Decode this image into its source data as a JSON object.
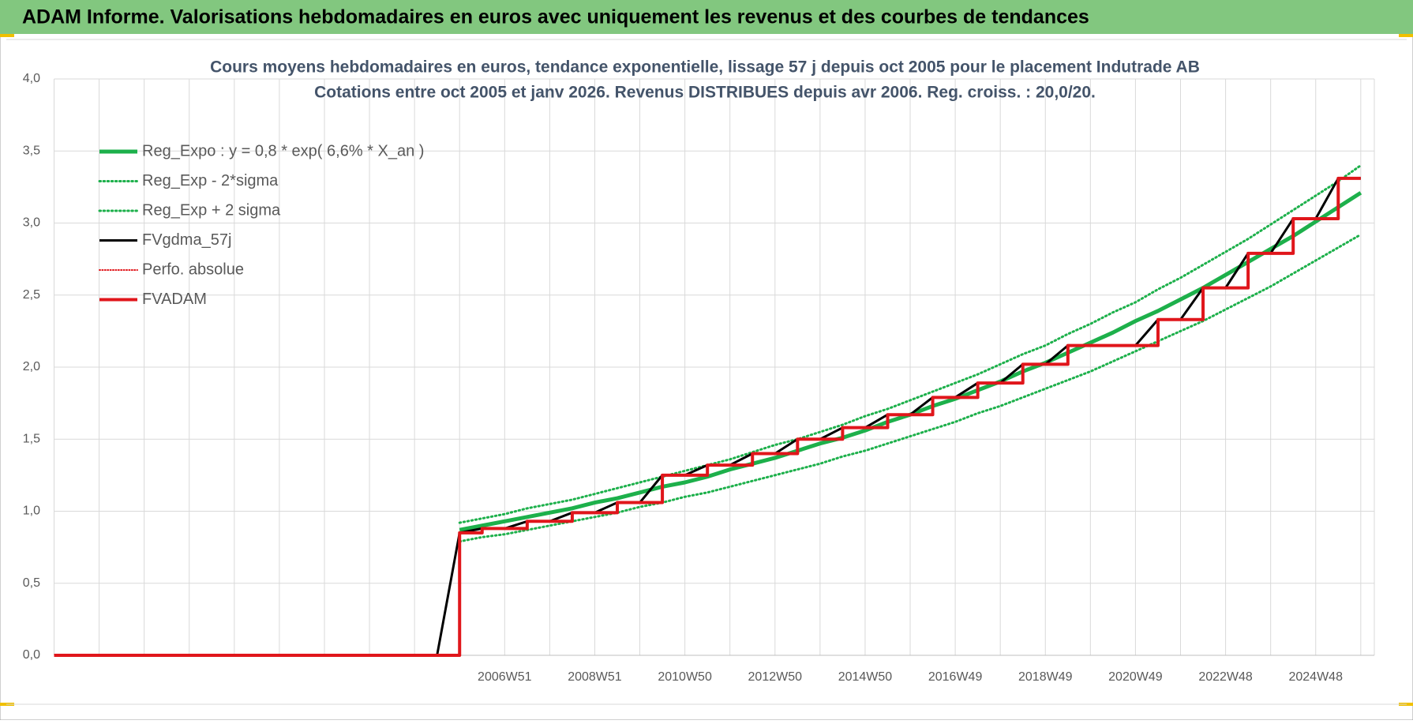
{
  "header": {
    "title": "ADAM Informe. Valorisations hebdomadaires en euros avec uniquement les revenus et des courbes de tendances"
  },
  "chart_data": {
    "type": "line",
    "title": [
      "Cours moyens hebdomadaires en euros, tendance exponentielle, lissage 57 j depuis oct 2005 pour le placement Indutrade AB",
      "Cotations entre oct 2005 et janv 2026. Revenus DISTRIBUES depuis avr 2006. Reg. croiss. : 20,0/20."
    ],
    "categories": [
      null,
      null,
      null,
      null,
      null,
      null,
      null,
      null,
      null,
      null,
      null,
      null,
      null,
      null,
      null,
      null,
      null,
      null,
      null,
      null,
      "2006W51",
      null,
      null,
      null,
      "2008W51",
      null,
      null,
      null,
      "2010W50",
      null,
      null,
      null,
      "2012W50",
      null,
      null,
      null,
      "2014W50",
      null,
      null,
      null,
      "2016W49",
      null,
      null,
      null,
      "2018W49",
      null,
      null,
      null,
      "2020W49",
      null,
      null,
      null,
      "2022W48",
      null,
      null,
      null,
      "2024W48",
      null,
      null
    ],
    "ylim": [
      0,
      4
    ],
    "yticks": [
      {
        "value": 0,
        "label": "0,0"
      },
      {
        "value": 0.5,
        "label": "0,5"
      },
      {
        "value": 1,
        "label": "1,0"
      },
      {
        "value": 1.5,
        "label": "1,5"
      },
      {
        "value": 2,
        "label": "2,0"
      },
      {
        "value": 2.5,
        "label": "2,5"
      },
      {
        "value": 3,
        "label": "3,0"
      },
      {
        "value": 3.5,
        "label": "3,5"
      },
      {
        "value": 4,
        "label": "4,0"
      }
    ],
    "grid": true,
    "legend": "upper-left",
    "series": [
      {
        "name": "Reg_Expo : y = 0,8 * exp( 6,6% *  X_an )",
        "color": "#1db04b",
        "width": 5,
        "dash": "solid",
        "values": [
          null,
          null,
          null,
          null,
          null,
          null,
          null,
          null,
          null,
          null,
          null,
          null,
          null,
          null,
          null,
          null,
          null,
          null,
          0.87,
          0.9,
          0.93,
          0.96,
          0.99,
          1.02,
          1.06,
          1.09,
          1.13,
          1.17,
          1.2,
          1.24,
          1.29,
          1.33,
          1.37,
          1.42,
          1.47,
          1.51,
          1.56,
          1.62,
          1.67,
          1.73,
          1.78,
          1.84,
          1.9,
          1.97,
          2.03,
          2.1,
          2.17,
          2.24,
          2.32,
          2.39,
          2.47,
          2.55,
          2.64,
          2.73,
          2.82,
          2.91,
          3.01,
          3.11,
          3.21
        ]
      },
      {
        "name": "Reg_Exp - 2*sigma",
        "color": "#1db04b",
        "width": 3,
        "dash": "dotted",
        "values": [
          null,
          null,
          null,
          null,
          null,
          null,
          null,
          null,
          null,
          null,
          null,
          null,
          null,
          null,
          null,
          null,
          null,
          null,
          0.79,
          0.82,
          0.84,
          0.87,
          0.9,
          0.93,
          0.96,
          0.99,
          1.03,
          1.06,
          1.1,
          1.13,
          1.17,
          1.21,
          1.25,
          1.29,
          1.33,
          1.38,
          1.42,
          1.47,
          1.52,
          1.57,
          1.62,
          1.68,
          1.73,
          1.79,
          1.85,
          1.91,
          1.97,
          2.04,
          2.11,
          2.18,
          2.25,
          2.32,
          2.4,
          2.48,
          2.56,
          2.65,
          2.74,
          2.83,
          2.92
        ]
      },
      {
        "name": "Reg_Exp + 2 sigma",
        "color": "#1db04b",
        "width": 3,
        "dash": "dotted",
        "values": [
          null,
          null,
          null,
          null,
          null,
          null,
          null,
          null,
          null,
          null,
          null,
          null,
          null,
          null,
          null,
          null,
          null,
          null,
          0.92,
          0.95,
          0.98,
          1.02,
          1.05,
          1.08,
          1.12,
          1.16,
          1.2,
          1.24,
          1.28,
          1.32,
          1.36,
          1.41,
          1.46,
          1.5,
          1.55,
          1.6,
          1.66,
          1.71,
          1.77,
          1.83,
          1.89,
          1.95,
          2.02,
          2.09,
          2.15,
          2.23,
          2.3,
          2.38,
          2.45,
          2.54,
          2.62,
          2.71,
          2.8,
          2.89,
          2.99,
          3.09,
          3.19,
          3.29,
          3.4
        ]
      },
      {
        "name": "FVgdma_57j",
        "color": "#000000",
        "width": 3,
        "dash": "solid",
        "values": [
          0,
          0,
          0,
          0,
          0,
          0,
          0,
          0,
          0,
          0,
          0,
          0,
          0,
          0,
          0,
          0,
          0,
          0,
          0.85,
          0.88,
          0.88,
          0.93,
          0.93,
          0.99,
          0.99,
          1.06,
          1.06,
          1.25,
          1.25,
          1.32,
          1.32,
          1.4,
          1.4,
          1.5,
          1.5,
          1.58,
          1.58,
          1.67,
          1.67,
          1.79,
          1.79,
          1.89,
          1.89,
          2.02,
          2.02,
          2.15,
          2.15,
          2.15,
          2.15,
          2.33,
          2.33,
          2.55,
          2.55,
          2.79,
          2.79,
          3.03,
          3.03,
          3.31,
          3.31
        ]
      },
      {
        "name": "Perfo. absolue",
        "color": "#e0161b",
        "width": 2,
        "dash": "dotted",
        "values": [
          null,
          null,
          null,
          null,
          null,
          null,
          null,
          null,
          null,
          null,
          null,
          null,
          null,
          null,
          null,
          null,
          null,
          null,
          null,
          null,
          null,
          null,
          null,
          null,
          null,
          null,
          null,
          null,
          null,
          null,
          null,
          null,
          null,
          null,
          null,
          null,
          null,
          null,
          null,
          null,
          null,
          null,
          null,
          null,
          null,
          null,
          null,
          null,
          null,
          null,
          null,
          null,
          null,
          null,
          null,
          null,
          null,
          null,
          null
        ]
      },
      {
        "name": "FVADAM",
        "color": "#e0161b",
        "width": 4,
        "dash": "solid",
        "step": true,
        "values": [
          0,
          0,
          0,
          0,
          0,
          0,
          0,
          0,
          0,
          0,
          0,
          0,
          0,
          0,
          0,
          0,
          0,
          0,
          0.85,
          0.88,
          0.88,
          0.93,
          0.93,
          0.99,
          0.99,
          1.06,
          1.06,
          1.25,
          1.25,
          1.32,
          1.32,
          1.4,
          1.4,
          1.5,
          1.5,
          1.58,
          1.58,
          1.67,
          1.67,
          1.79,
          1.79,
          1.89,
          1.89,
          2.02,
          2.02,
          2.15,
          2.15,
          2.15,
          2.15,
          2.33,
          2.33,
          2.55,
          2.55,
          2.79,
          2.79,
          3.03,
          3.03,
          3.31,
          3.31
        ]
      }
    ]
  }
}
